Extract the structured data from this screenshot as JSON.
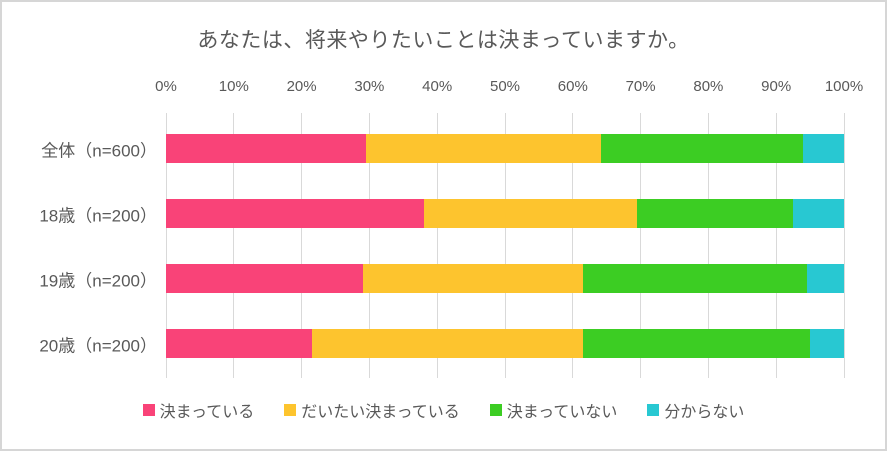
{
  "title": "あなたは、将来やりたいことは決まっていますか。",
  "colors": {
    "text": "#595959",
    "gridline": "#d9d9d9",
    "frame_border": "#d6d6d6",
    "series_pink": "#f94378",
    "series_yellow": "#fdc42e",
    "series_green": "#3ccd23",
    "series_cyan": "#28c8d2"
  },
  "chart_data": {
    "type": "bar",
    "orientation": "horizontal",
    "stacked": true,
    "title": "あなたは、将来やりたいことは決まっていますか。",
    "categories": [
      "全体（n=600）",
      "18歳（n=200）",
      "19歳（n=200）",
      "20歳（n=200）"
    ],
    "series": [
      {
        "name": "決まっている",
        "color": "#f94378",
        "values": [
          29.5,
          38.0,
          29.0,
          21.5
        ]
      },
      {
        "name": "だいたい決まっている",
        "color": "#fdc42e",
        "values": [
          34.7,
          31.5,
          32.5,
          40.0
        ]
      },
      {
        "name": "決まっていない",
        "color": "#3ccd23",
        "values": [
          29.8,
          23.0,
          33.0,
          33.5
        ]
      },
      {
        "name": "分からない",
        "color": "#28c8d2",
        "values": [
          6.0,
          7.5,
          5.5,
          5.0
        ]
      }
    ],
    "x_axis": {
      "position": "top",
      "min": 0,
      "max": 100,
      "tick_step": 10,
      "ticks": [
        "0%",
        "10%",
        "20%",
        "30%",
        "40%",
        "50%",
        "60%",
        "70%",
        "80%",
        "90%",
        "100%"
      ]
    },
    "grid": true,
    "legend_position": "bottom",
    "data_labels": false
  }
}
